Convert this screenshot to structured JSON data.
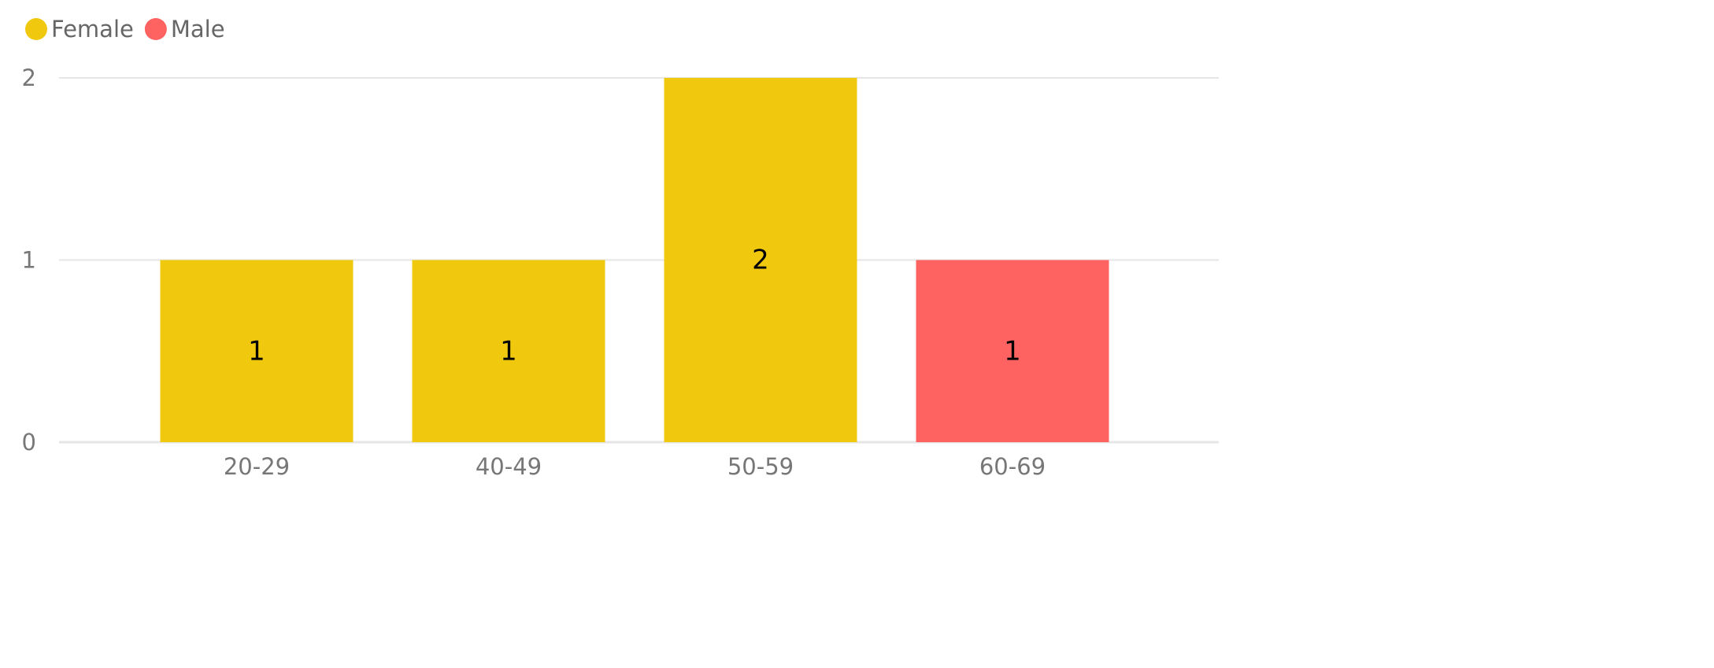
{
  "chart_data": {
    "type": "bar",
    "title": "",
    "xlabel": "",
    "ylabel": "",
    "categories": [
      "20-29",
      "40-49",
      "50-59",
      "60-69"
    ],
    "series": [
      {
        "name": "Female",
        "color": "#F0C90F",
        "values": [
          1,
          1,
          2,
          null
        ]
      },
      {
        "name": "Male",
        "color": "#FF6361",
        "values": [
          null,
          null,
          null,
          1
        ]
      }
    ],
    "data_labels": [
      "1",
      "1",
      "2",
      "1"
    ],
    "yticks": [
      0,
      1,
      2
    ],
    "ylim": [
      0,
      2
    ],
    "grid": true,
    "legend_position": "top-left",
    "colors": {
      "axis_text": "#777777",
      "gridline": "#E6E6E6",
      "data_label": "#000000",
      "legend_text": "#666666"
    }
  }
}
